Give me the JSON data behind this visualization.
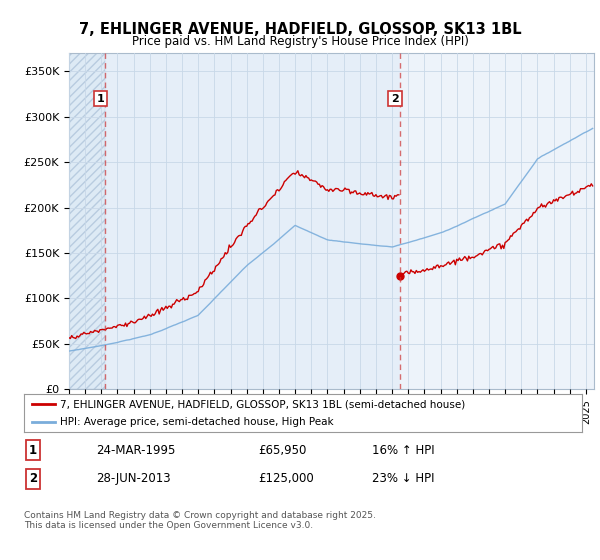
{
  "title": "7, EHLINGER AVENUE, HADFIELD, GLOSSOP, SK13 1BL",
  "subtitle": "Price paid vs. HM Land Registry's House Price Index (HPI)",
  "ylim": [
    0,
    370000
  ],
  "yticks": [
    0,
    50000,
    100000,
    150000,
    200000,
    250000,
    300000,
    350000
  ],
  "ytick_labels": [
    "£0",
    "£50K",
    "£100K",
    "£150K",
    "£200K",
    "£250K",
    "£300K",
    "£350K"
  ],
  "red_line_color": "#cc0000",
  "blue_line_color": "#7aaddb",
  "hatch_color": "#dde8f0",
  "mid_bg_color": "#e8f0f8",
  "right_bg_color": "#f0f5fb",
  "grid_color": "#c8d8e8",
  "bg_color": "#eef4fa",
  "sale1_date": 1995.23,
  "sale1_price": 65950,
  "sale2_date": 2013.49,
  "sale2_price": 125000,
  "legend_red": "7, EHLINGER AVENUE, HADFIELD, GLOSSOP, SK13 1BL (semi-detached house)",
  "legend_blue": "HPI: Average price, semi-detached house, High Peak",
  "table_row1": [
    "1",
    "24-MAR-1995",
    "£65,950",
    "16% ↑ HPI"
  ],
  "table_row2": [
    "2",
    "28-JUN-2013",
    "£125,000",
    "23% ↓ HPI"
  ],
  "footer": "Contains HM Land Registry data © Crown copyright and database right 2025.\nThis data is licensed under the Open Government Licence v3.0.",
  "xlim_start": 1993.0,
  "xlim_end": 2025.5
}
